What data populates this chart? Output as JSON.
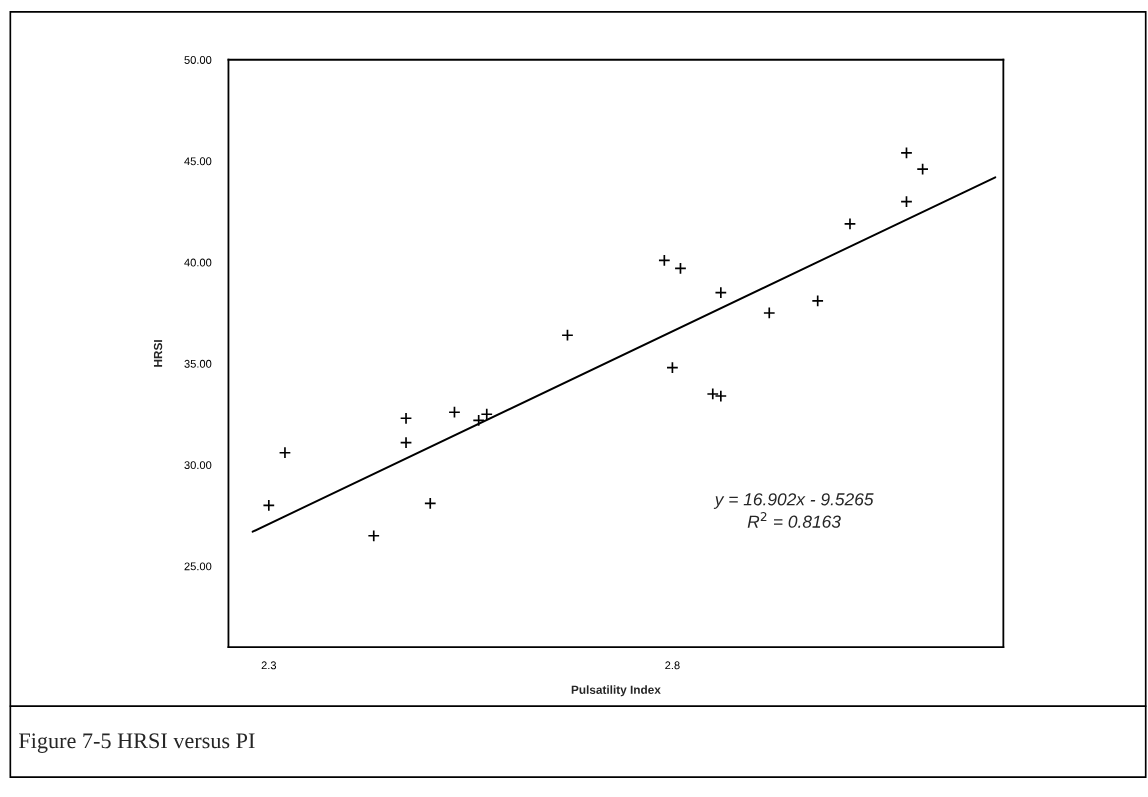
{
  "chart_data": {
    "type": "scatter",
    "xlabel": "Pulsatility Index",
    "ylabel": "HRSI",
    "annotations": [
      "y = 16.902x - 9.5265\nR$^{2}$ = 0.8163",
      "Figure 7-5 HRSI versus PI"
    ],
    "xlim": [
      2.25,
      3.21
    ],
    "ylim": [
      21,
      50
    ],
    "xticks": [
      2.3,
      2.8
    ],
    "yticks": [
      {
        "value": 25,
        "label": "25.00"
      },
      {
        "value": 30,
        "label": "30.00"
      },
      {
        "value": 35,
        "label": "35.00"
      },
      {
        "value": 40,
        "label": "40.00"
      },
      {
        "value": 45,
        "label": "45.00"
      },
      {
        "value": 50,
        "label": "50.00"
      }
    ],
    "grid": false,
    "marker": "cross",
    "series": [
      {
        "color": "#000000",
        "x": [
          2.3,
          2.32,
          2.43,
          2.47,
          2.47,
          2.5,
          2.53,
          2.57,
          2.56,
          2.67,
          2.79,
          2.81,
          2.8,
          2.85,
          2.86,
          2.86,
          2.92,
          2.98,
          3.02,
          3.09,
          3.11,
          3.09
        ],
        "values": [
          28.0,
          30.6,
          26.5,
          32.3,
          31.1,
          28.1,
          32.6,
          32.5,
          32.2,
          36.4,
          40.1,
          39.7,
          34.8,
          33.5,
          33.4,
          38.5,
          37.5,
          38.1,
          41.9,
          45.4,
          44.6,
          43.0
        ]
      },
      {
        "type": "line",
        "color": "#000000",
        "x": [
          2.28,
          3.2
        ],
        "values": [
          26.7,
          44.2
        ],
        "marker": "none",
        "line_style": "solid"
      }
    ]
  }
}
